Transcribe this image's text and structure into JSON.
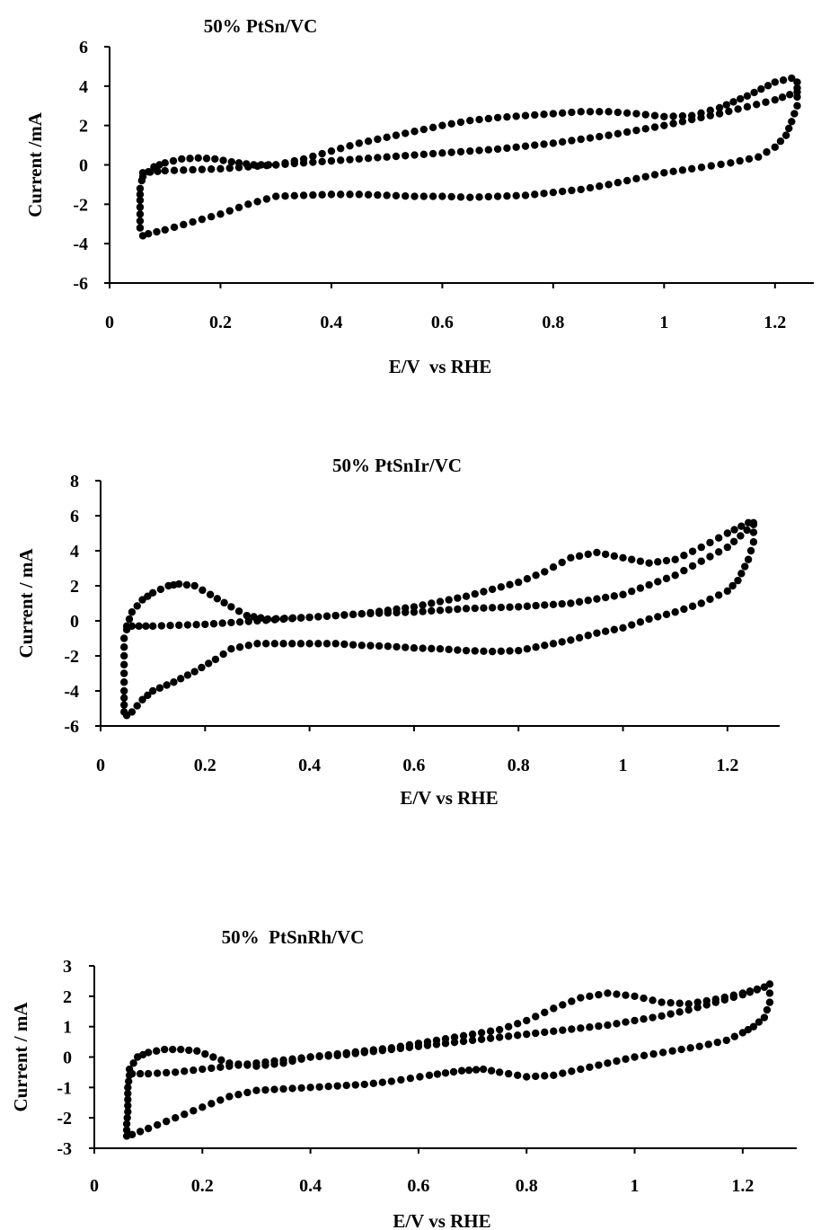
{
  "chart_data": [
    {
      "type": "scatter",
      "title": "50% PtSn/VC",
      "xlabel": "E/V  vs RHE",
      "ylabel": "Current /mA",
      "xlim": [
        0,
        1.27
      ],
      "ylim": [
        -6,
        6
      ],
      "xticks": [
        "0",
        "0.2",
        "0.4",
        "0.6",
        "0.8",
        "1",
        "1.2"
      ],
      "yticks": [
        "-6",
        "-4",
        "-2",
        "0",
        "2",
        "4",
        "6"
      ],
      "grid": false,
      "legend": "none",
      "series": [
        {
          "points": [
            [
              0.06,
              -0.6
            ],
            [
              0.08,
              -0.1
            ],
            [
              0.1,
              0.1
            ],
            [
              0.13,
              0.3
            ],
            [
              0.16,
              0.35
            ],
            [
              0.19,
              0.3
            ],
            [
              0.22,
              0.15
            ],
            [
              0.26,
              0.0
            ],
            [
              0.3,
              0.0
            ],
            [
              0.35,
              0.3
            ],
            [
              0.4,
              0.7
            ],
            [
              0.45,
              1.1
            ],
            [
              0.5,
              1.4
            ],
            [
              0.55,
              1.7
            ],
            [
              0.6,
              2.0
            ],
            [
              0.65,
              2.25
            ],
            [
              0.7,
              2.4
            ],
            [
              0.75,
              2.5
            ],
            [
              0.8,
              2.6
            ],
            [
              0.85,
              2.7
            ],
            [
              0.9,
              2.7
            ],
            [
              0.95,
              2.6
            ],
            [
              1.0,
              2.45
            ],
            [
              1.05,
              2.5
            ],
            [
              1.1,
              2.9
            ],
            [
              1.15,
              3.5
            ],
            [
              1.2,
              4.2
            ],
            [
              1.23,
              4.4
            ],
            [
              1.24,
              4.2
            ]
          ]
        },
        {
          "points": [
            [
              0.06,
              -0.4
            ],
            [
              0.1,
              -0.3
            ],
            [
              0.2,
              -0.2
            ],
            [
              0.3,
              0.0
            ],
            [
              0.4,
              0.2
            ],
            [
              0.5,
              0.4
            ],
            [
              0.6,
              0.6
            ],
            [
              0.7,
              0.8
            ],
            [
              0.8,
              1.1
            ],
            [
              0.9,
              1.5
            ],
            [
              1.0,
              2.0
            ],
            [
              1.1,
              2.6
            ],
            [
              1.2,
              3.3
            ],
            [
              1.24,
              3.7
            ]
          ]
        },
        {
          "points": [
            [
              1.24,
              3.9
            ],
            [
              1.24,
              3.0
            ],
            [
              1.23,
              2.2
            ],
            [
              1.22,
              1.5
            ],
            [
              1.2,
              0.9
            ],
            [
              1.17,
              0.4
            ],
            [
              1.12,
              0.1
            ],
            [
              1.05,
              -0.2
            ],
            [
              1.0,
              -0.4
            ],
            [
              0.95,
              -0.7
            ],
            [
              0.9,
              -1.0
            ],
            [
              0.85,
              -1.25
            ],
            [
              0.8,
              -1.4
            ],
            [
              0.75,
              -1.55
            ],
            [
              0.7,
              -1.6
            ],
            [
              0.65,
              -1.65
            ],
            [
              0.6,
              -1.6
            ],
            [
              0.55,
              -1.6
            ],
            [
              0.5,
              -1.55
            ],
            [
              0.45,
              -1.5
            ],
            [
              0.4,
              -1.5
            ],
            [
              0.35,
              -1.55
            ],
            [
              0.3,
              -1.6
            ],
            [
              0.25,
              -2.0
            ],
            [
              0.2,
              -2.5
            ],
            [
              0.15,
              -2.9
            ],
            [
              0.1,
              -3.3
            ],
            [
              0.07,
              -3.5
            ],
            [
              0.06,
              -3.6
            ],
            [
              0.055,
              -3.2
            ],
            [
              0.055,
              -2.5
            ],
            [
              0.055,
              -1.8
            ],
            [
              0.055,
              -1.2
            ],
            [
              0.058,
              -0.8
            ]
          ]
        }
      ]
    },
    {
      "type": "scatter",
      "title": "50% PtSnIr/VC",
      "xlabel": "E/V vs RHE",
      "ylabel": "Current / mA",
      "xlim": [
        0,
        1.3
      ],
      "ylim": [
        -6,
        8
      ],
      "xticks": [
        "0",
        "0.2",
        "0.4",
        "0.6",
        "0.8",
        "1",
        "1.2"
      ],
      "yticks": [
        "-6",
        "-4",
        "-2",
        "0",
        "2",
        "4",
        "6",
        "8"
      ],
      "grid": false,
      "legend": "none",
      "series": [
        {
          "points": [
            [
              0.05,
              -0.3
            ],
            [
              0.06,
              0.5
            ],
            [
              0.08,
              1.2
            ],
            [
              0.1,
              1.6
            ],
            [
              0.13,
              2.0
            ],
            [
              0.15,
              2.1
            ],
            [
              0.18,
              2.0
            ],
            [
              0.21,
              1.5
            ],
            [
              0.25,
              0.8
            ],
            [
              0.28,
              0.3
            ],
            [
              0.32,
              0.1
            ],
            [
              0.4,
              0.2
            ],
            [
              0.5,
              0.4
            ],
            [
              0.6,
              0.8
            ],
            [
              0.7,
              1.4
            ],
            [
              0.8,
              2.2
            ],
            [
              0.85,
              2.8
            ],
            [
              0.9,
              3.6
            ],
            [
              0.95,
              3.9
            ],
            [
              1.0,
              3.6
            ],
            [
              1.05,
              3.3
            ],
            [
              1.1,
              3.5
            ],
            [
              1.15,
              4.2
            ],
            [
              1.2,
              5.0
            ],
            [
              1.24,
              5.6
            ]
          ]
        },
        {
          "points": [
            [
              0.06,
              -0.3
            ],
            [
              0.1,
              -0.3
            ],
            [
              0.2,
              -0.2
            ],
            [
              0.3,
              0.0
            ],
            [
              0.4,
              0.2
            ],
            [
              0.5,
              0.4
            ],
            [
              0.6,
              0.5
            ],
            [
              0.7,
              0.7
            ],
            [
              0.8,
              0.8
            ],
            [
              0.9,
              1.0
            ],
            [
              1.0,
              1.5
            ],
            [
              1.1,
              2.6
            ],
            [
              1.2,
              4.2
            ],
            [
              1.25,
              5.5
            ]
          ]
        },
        {
          "points": [
            [
              1.25,
              5.6
            ],
            [
              1.25,
              4.5
            ],
            [
              1.24,
              3.5
            ],
            [
              1.22,
              2.3
            ],
            [
              1.2,
              1.7
            ],
            [
              1.15,
              1.0
            ],
            [
              1.1,
              0.5
            ],
            [
              1.05,
              0.1
            ],
            [
              1.0,
              -0.4
            ],
            [
              0.95,
              -0.7
            ],
            [
              0.9,
              -1.1
            ],
            [
              0.85,
              -1.4
            ],
            [
              0.8,
              -1.7
            ],
            [
              0.75,
              -1.75
            ],
            [
              0.7,
              -1.7
            ],
            [
              0.65,
              -1.6
            ],
            [
              0.6,
              -1.55
            ],
            [
              0.55,
              -1.45
            ],
            [
              0.5,
              -1.4
            ],
            [
              0.45,
              -1.3
            ],
            [
              0.4,
              -1.3
            ],
            [
              0.35,
              -1.3
            ],
            [
              0.3,
              -1.3
            ],
            [
              0.25,
              -1.6
            ],
            [
              0.22,
              -2.2
            ],
            [
              0.18,
              -2.9
            ],
            [
              0.14,
              -3.5
            ],
            [
              0.1,
              -4.0
            ],
            [
              0.08,
              -4.5
            ],
            [
              0.06,
              -5.2
            ],
            [
              0.05,
              -5.4
            ],
            [
              0.045,
              -5.2
            ],
            [
              0.045,
              -4.0
            ],
            [
              0.045,
              -3.0
            ],
            [
              0.045,
              -2.0
            ],
            [
              0.045,
              -1.0
            ],
            [
              0.05,
              -0.5
            ]
          ]
        }
      ]
    },
    {
      "type": "scatter",
      "title": "50%  PtSnRh/VC",
      "xlabel": "E/V vs RHE",
      "ylabel": "Current / mA",
      "xlim": [
        0,
        1.3
      ],
      "ylim": [
        -3,
        3
      ],
      "xticks": [
        "0",
        "0.2",
        "0.4",
        "0.6",
        "0.8",
        "1",
        "1.2"
      ],
      "yticks": [
        "-3",
        "-2",
        "-1",
        "0",
        "1",
        "2",
        "3"
      ],
      "grid": false,
      "legend": "none",
      "series": [
        {
          "points": [
            [
              0.065,
              -0.4
            ],
            [
              0.08,
              0.0
            ],
            [
              0.1,
              0.15
            ],
            [
              0.13,
              0.25
            ],
            [
              0.16,
              0.25
            ],
            [
              0.19,
              0.2
            ],
            [
              0.22,
              0.0
            ],
            [
              0.25,
              -0.2
            ],
            [
              0.3,
              -0.3
            ],
            [
              0.35,
              -0.2
            ],
            [
              0.4,
              0.0
            ],
            [
              0.45,
              0.1
            ],
            [
              0.5,
              0.2
            ],
            [
              0.55,
              0.3
            ],
            [
              0.6,
              0.45
            ],
            [
              0.65,
              0.6
            ],
            [
              0.7,
              0.75
            ],
            [
              0.75,
              0.9
            ],
            [
              0.8,
              1.2
            ],
            [
              0.85,
              1.6
            ],
            [
              0.9,
              1.95
            ],
            [
              0.95,
              2.1
            ],
            [
              1.0,
              2.0
            ],
            [
              1.05,
              1.8
            ],
            [
              1.1,
              1.75
            ],
            [
              1.15,
              1.9
            ],
            [
              1.2,
              2.1
            ],
            [
              1.24,
              2.3
            ]
          ]
        },
        {
          "points": [
            [
              0.07,
              -0.55
            ],
            [
              0.1,
              -0.55
            ],
            [
              0.15,
              -0.5
            ],
            [
              0.2,
              -0.4
            ],
            [
              0.25,
              -0.3
            ],
            [
              0.3,
              -0.2
            ],
            [
              0.35,
              -0.1
            ],
            [
              0.4,
              0.0
            ],
            [
              0.45,
              0.05
            ],
            [
              0.5,
              0.15
            ],
            [
              0.55,
              0.25
            ],
            [
              0.6,
              0.35
            ],
            [
              0.65,
              0.45
            ],
            [
              0.7,
              0.55
            ],
            [
              0.75,
              0.65
            ],
            [
              0.8,
              0.75
            ],
            [
              0.85,
              0.85
            ],
            [
              0.9,
              0.95
            ],
            [
              0.95,
              1.05
            ],
            [
              1.0,
              1.2
            ],
            [
              1.05,
              1.35
            ],
            [
              1.1,
              1.55
            ],
            [
              1.15,
              1.8
            ],
            [
              1.2,
              2.05
            ],
            [
              1.24,
              2.3
            ]
          ]
        },
        {
          "points": [
            [
              1.25,
              2.4
            ],
            [
              1.25,
              1.8
            ],
            [
              1.24,
              1.3
            ],
            [
              1.22,
              1.0
            ],
            [
              1.2,
              0.8
            ],
            [
              1.17,
              0.55
            ],
            [
              1.12,
              0.35
            ],
            [
              1.07,
              0.2
            ],
            [
              1.0,
              0.0
            ],
            [
              0.95,
              -0.2
            ],
            [
              0.9,
              -0.4
            ],
            [
              0.85,
              -0.6
            ],
            [
              0.8,
              -0.65
            ],
            [
              0.75,
              -0.5
            ],
            [
              0.72,
              -0.4
            ],
            [
              0.68,
              -0.45
            ],
            [
              0.62,
              -0.6
            ],
            [
              0.55,
              -0.8
            ],
            [
              0.5,
              -0.9
            ],
            [
              0.45,
              -0.95
            ],
            [
              0.4,
              -1.0
            ],
            [
              0.35,
              -1.05
            ],
            [
              0.3,
              -1.1
            ],
            [
              0.25,
              -1.3
            ],
            [
              0.2,
              -1.65
            ],
            [
              0.15,
              -2.0
            ],
            [
              0.1,
              -2.35
            ],
            [
              0.07,
              -2.55
            ],
            [
              0.06,
              -2.6
            ],
            [
              0.06,
              -2.2
            ],
            [
              0.062,
              -1.8
            ],
            [
              0.062,
              -1.4
            ],
            [
              0.062,
              -1.0
            ],
            [
              0.065,
              -0.6
            ]
          ]
        }
      ]
    }
  ]
}
